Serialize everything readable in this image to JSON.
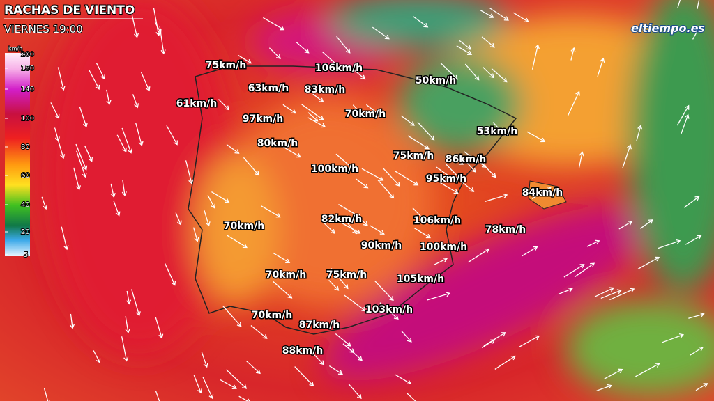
{
  "header": {
    "title": "RACHAS DE VIENTO",
    "subtitle": "VIERNES 19:00"
  },
  "logo": "eltiempo.es",
  "legend": {
    "unit": "km/h",
    "ticks": [
      200,
      180,
      140,
      100,
      80,
      60,
      40,
      20,
      5
    ]
  },
  "labels": [
    "75km/h",
    "106km/h",
    "63km/h",
    "83km/h",
    "50km/h",
    "61km/h",
    "70km/h",
    "97km/h",
    "53km/h",
    "80km/h",
    "75km/h",
    "86km/h",
    "100km/h",
    "95km/h",
    "84km/h",
    "70km/h",
    "82km/h",
    "106km/h",
    "78km/h",
    "90km/h",
    "100km/h",
    "70km/h",
    "75km/h",
    "105km/h",
    "103km/h",
    "70km/h",
    "87km/h",
    "88km/h"
  ]
}
